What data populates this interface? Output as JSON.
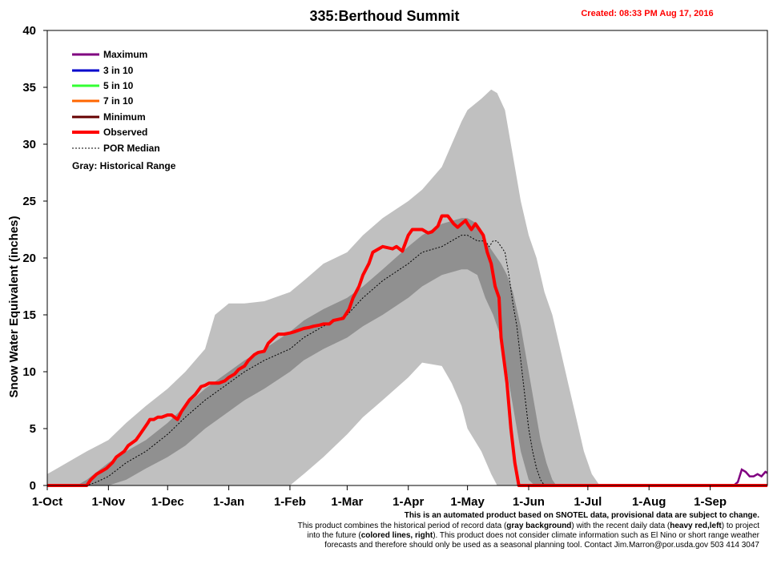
{
  "chart_data": {
    "type": "area",
    "title": "335:Berthoud Summit",
    "created": "Created: 08:33 PM Aug 17, 2016",
    "ylabel": "Snow Water Equivalent (inches)",
    "ylim": [
      0,
      40
    ],
    "yticks": [
      0,
      5,
      10,
      15,
      20,
      25,
      30,
      35,
      40
    ],
    "xlim": [
      0,
      365
    ],
    "xticks": [
      {
        "label": "1-Oct",
        "day": 0
      },
      {
        "label": "1-Nov",
        "day": 31
      },
      {
        "label": "1-Dec",
        "day": 61
      },
      {
        "label": "1-Jan",
        "day": 92
      },
      {
        "label": "1-Feb",
        "day": 123
      },
      {
        "label": "1-Mar",
        "day": 152
      },
      {
        "label": "1-Apr",
        "day": 183
      },
      {
        "label": "1-May",
        "day": 213
      },
      {
        "label": "1-Jun",
        "day": 244
      },
      {
        "label": "1-Jul",
        "day": 274
      },
      {
        "label": "1-Aug",
        "day": 305
      },
      {
        "label": "1-Sep",
        "day": 336
      }
    ],
    "legend": {
      "placement": "top-left",
      "entries": [
        {
          "label": "Maximum",
          "color": "#800080",
          "style": "solid"
        },
        {
          "label": "3 in 10",
          "color": "#0000cc",
          "style": "solid"
        },
        {
          "label": "5 in 10",
          "color": "#33ff33",
          "style": "solid"
        },
        {
          "label": "7 in 10",
          "color": "#ff6600",
          "style": "solid"
        },
        {
          "label": "Minimum",
          "color": "#660000",
          "style": "solid"
        },
        {
          "label": "Observed",
          "color": "#ff0000",
          "style": "heavy"
        },
        {
          "label": "POR Median",
          "color": "#000000",
          "style": "dashed"
        }
      ],
      "gray_note": "Gray: Historical Range"
    },
    "historical_range": {
      "days": [
        0,
        5,
        10,
        15,
        20,
        31,
        40,
        50,
        61,
        70,
        80,
        85,
        92,
        100,
        110,
        123,
        130,
        140,
        152,
        160,
        170,
        183,
        190,
        200,
        205,
        210,
        213,
        220,
        225,
        228,
        232,
        235,
        238,
        240,
        244,
        248,
        252,
        256,
        260,
        264,
        268,
        272,
        276,
        280,
        285,
        290
      ],
      "upper": [
        1,
        1.5,
        2,
        2.5,
        3,
        4,
        5.5,
        7,
        8.5,
        10,
        12,
        15,
        16,
        16,
        16.2,
        17,
        18,
        19.5,
        20.5,
        22,
        23.5,
        25,
        26,
        28,
        30,
        32,
        33,
        34,
        34.8,
        34.5,
        33,
        30,
        27,
        25,
        22,
        20,
        17,
        15,
        12,
        9,
        6,
        3,
        1,
        0,
        0,
        0
      ],
      "lower": [
        0,
        0,
        0,
        0,
        0,
        0,
        0,
        0,
        0,
        0,
        0,
        0,
        0,
        0,
        0,
        0,
        1,
        2.5,
        4.5,
        6,
        7.5,
        9.5,
        10.8,
        10.5,
        9,
        7,
        5,
        3,
        1,
        0,
        0,
        0,
        0,
        0,
        0,
        0,
        0,
        0,
        0,
        0,
        0,
        0,
        0,
        0,
        0,
        0
      ]
    },
    "inner_range": {
      "days": [
        15,
        20,
        31,
        40,
        50,
        61,
        70,
        80,
        92,
        100,
        110,
        123,
        130,
        140,
        152,
        160,
        170,
        183,
        190,
        200,
        210,
        213,
        218,
        220,
        222,
        226,
        230,
        233,
        236,
        240,
        244,
        247,
        250,
        253,
        256,
        258,
        260,
        262,
        264,
        266,
        268
      ],
      "upper": [
        0,
        0.5,
        2,
        3,
        4,
        5.5,
        7,
        8.5,
        10,
        11,
        12,
        13.5,
        14.5,
        15.5,
        16.5,
        17.5,
        19,
        21,
        22,
        23,
        23.5,
        23.5,
        23,
        22.5,
        21.5,
        20.5,
        19.5,
        18.5,
        17,
        14,
        10,
        7,
        4,
        2,
        0.5,
        0,
        0,
        0,
        0,
        0,
        0
      ],
      "lower": [
        0,
        0,
        0,
        0.5,
        1.5,
        2.5,
        3.5,
        5,
        6.5,
        7.5,
        8.5,
        10,
        11,
        12,
        13,
        14,
        15,
        16.5,
        17.5,
        18.5,
        19,
        19,
        18.5,
        17.5,
        16.5,
        15,
        13,
        10,
        7,
        3,
        0.5,
        0,
        0,
        0,
        0,
        0,
        0,
        0,
        0,
        0,
        0
      ]
    },
    "series": [
      {
        "name": "Observed",
        "color": "#ff0000",
        "x": [
          0,
          10,
          17,
          20,
          22,
          25,
          27,
          30,
          33,
          35,
          39,
          41,
          45,
          47,
          51,
          52,
          54,
          56,
          58,
          61,
          63,
          66,
          68,
          70,
          72,
          75,
          78,
          80,
          82,
          85,
          87,
          90,
          92,
          95,
          97,
          100,
          102,
          105,
          107,
          110,
          112,
          115,
          117,
          120,
          123,
          125,
          130,
          133,
          135,
          138,
          140,
          143,
          145,
          150,
          153,
          155,
          158,
          160,
          163,
          165,
          168,
          170,
          175,
          177,
          180,
          183,
          185,
          190,
          193,
          195,
          198,
          200,
          203,
          206,
          208,
          210,
          212,
          213,
          215,
          217,
          219,
          221,
          223,
          225,
          227,
          229,
          230,
          233,
          235,
          237,
          239,
          241,
          244,
          246,
          248,
          250,
          252,
          254,
          256,
          258,
          260,
          262,
          264,
          266,
          270,
          300,
          340,
          350,
          355,
          358,
          360,
          362,
          365
        ],
        "y": [
          0,
          0,
          0,
          0,
          0.5,
          1,
          1.2,
          1.5,
          2,
          2.5,
          3,
          3.5,
          4,
          4.5,
          5.5,
          5.8,
          5.8,
          6,
          6,
          6.2,
          6.2,
          5.8,
          6.5,
          7,
          7.5,
          8,
          8.7,
          8.8,
          9,
          9,
          9,
          9.2,
          9.5,
          9.8,
          10.2,
          10.5,
          11,
          11.5,
          11.7,
          11.8,
          12.5,
          13,
          13.3,
          13.3,
          13.4,
          13.5,
          13.8,
          13.9,
          14,
          14.1,
          14.2,
          14.2,
          14.5,
          14.7,
          15.5,
          16.5,
          17.5,
          18.5,
          19.5,
          20.5,
          20.8,
          21,
          20.8,
          21,
          20.6,
          22,
          22.5,
          22.5,
          22.2,
          22.3,
          22.8,
          23.7,
          23.7,
          23,
          22.7,
          23,
          23.3,
          23,
          22.5,
          23,
          22.5,
          22,
          20.5,
          19.5,
          17.5,
          16.5,
          13,
          9,
          5,
          2,
          0,
          0,
          0,
          0,
          0,
          0,
          0,
          0,
          0,
          0,
          0,
          0,
          0,
          0,
          0,
          0,
          0,
          0,
          0,
          0,
          0,
          0,
          0
        ]
      },
      {
        "name": "POR Median",
        "color": "#000000",
        "x": [
          0,
          20,
          25,
          31,
          40,
          50,
          61,
          70,
          80,
          92,
          100,
          110,
          123,
          130,
          140,
          152,
          160,
          170,
          183,
          190,
          200,
          205,
          210,
          213,
          218,
          222,
          224,
          226,
          228,
          230,
          232,
          234,
          236,
          238,
          240,
          242,
          244,
          246,
          248,
          250,
          252,
          254,
          256,
          258,
          260
        ],
        "y": [
          0,
          0,
          0.3,
          0.8,
          2,
          3,
          4.5,
          6,
          7.5,
          9,
          10,
          11,
          12,
          13,
          14,
          15,
          16.5,
          18,
          19.5,
          20.5,
          21,
          21.5,
          22,
          22,
          21.5,
          21.5,
          21,
          21.5,
          21.5,
          21,
          20.5,
          18.5,
          16,
          14,
          11,
          8,
          5,
          3,
          1.5,
          0.5,
          0,
          0,
          0,
          0,
          0
        ]
      },
      {
        "name": "Maximum",
        "color": "#800080",
        "x": [
          348,
          350,
          352,
          354,
          356,
          358,
          360,
          362,
          364,
          365
        ],
        "y": [
          0,
          0.3,
          1.4,
          1.2,
          0.8,
          0.8,
          1,
          0.8,
          1.2,
          1.1
        ]
      }
    ]
  },
  "footer": {
    "line1": "This is an automated product based on SNOTEL data, provisional data are subject to change.",
    "line2a": "This product combines the historical period of record data (",
    "line2b": "gray background",
    "line2c": ") with the recent daily data (",
    "line2d": "heavy red,left",
    "line2e": ") to project",
    "line3a": "into the future (",
    "line3b": "colored lines, right",
    "line3c": "). This product does not consider climate information such as El Nino or short range weather",
    "line4": "forecasts and therefore should only be used as a seasonal planning tool. Contact Jim.Marron@por.usda.gov 503 414 3047"
  }
}
